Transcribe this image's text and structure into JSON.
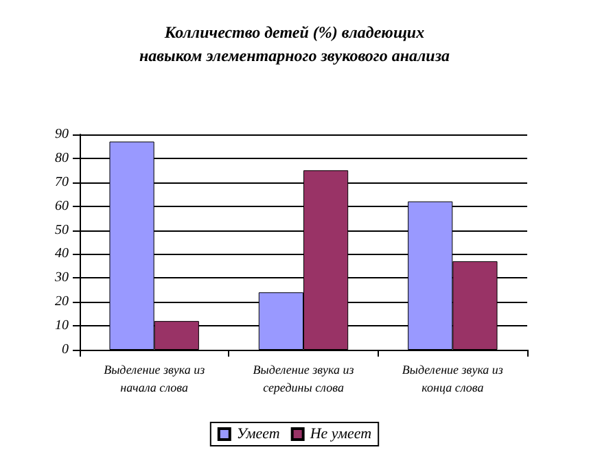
{
  "chart_data": {
    "type": "bar",
    "title": "Колличество детей (%) владеющих\nнавыком элементарного звукового анализа",
    "categories": [
      "Выделение звука из\nначала слова",
      "Выделение звука из\nсередины слова",
      "Выделение звука из\nконца слова"
    ],
    "series": [
      {
        "name": "Умеет",
        "color": "#9999ff",
        "values": [
          87,
          24,
          62
        ]
      },
      {
        "name": "Не умеет",
        "color": "#993366",
        "values": [
          12,
          75,
          37
        ]
      }
    ],
    "ylim": [
      0,
      90
    ],
    "yticks": [
      0,
      10,
      20,
      30,
      40,
      50,
      60,
      70,
      80,
      90
    ],
    "grid": "y",
    "legend": "bottom"
  }
}
